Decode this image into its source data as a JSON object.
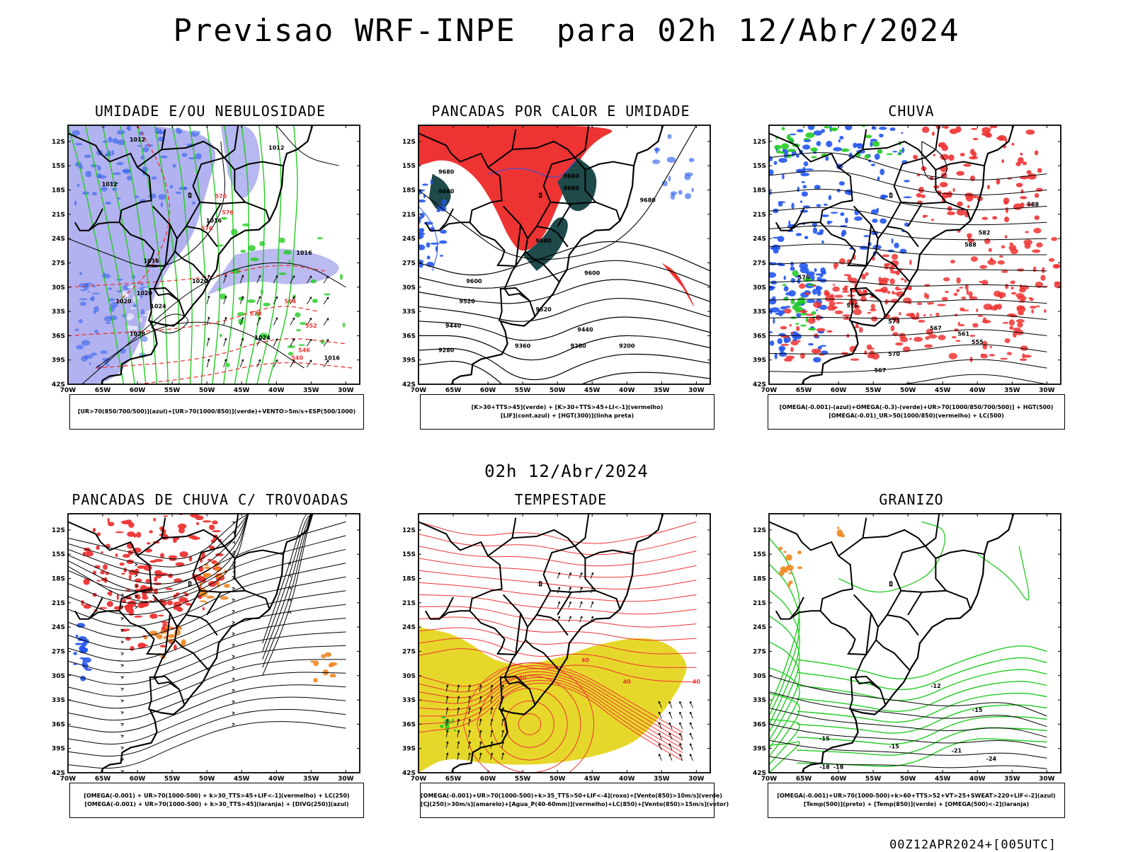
{
  "title": "Previsao WRF-INPE  para 02h 12/Abr/2024",
  "mid_date": "02h 12/Abr/2024",
  "footer": "00Z12APR2024+[005UTC]",
  "lat_labels": [
    "12S",
    "15S",
    "18S",
    "21S",
    "24S",
    "27S",
    "30S",
    "33S",
    "36S",
    "39S",
    "42S"
  ],
  "lon_labels": [
    "70W",
    "65W",
    "60W",
    "55W",
    "50W",
    "45W",
    "40W",
    "35W",
    "30W"
  ],
  "colors": {
    "red": "#ee3333",
    "blue": "#2255ee",
    "green": "#22cc22",
    "lavender": "#aaaaee",
    "dark_teal": "#1e4a4a",
    "orange": "#ee8822",
    "yellow": "#e6d82a",
    "black": "#000000"
  },
  "panels": [
    {
      "id": "p1",
      "title": "UMIDADE E/OU NEBULOSIDADE",
      "legend": [
        "[UR>70(850/700/500)](azul)+[UR>70(1000/850)](verde)+VENTO>5m/s+ESP(500/1000)"
      ],
      "contour_labels": [
        "1012",
        "1012",
        "1012",
        "1016",
        "1016",
        "1016",
        "1020",
        "1020",
        "1020",
        "1024",
        "1024",
        "1028",
        "1016",
        "576",
        "576",
        "576",
        "570",
        "564",
        "552",
        "546",
        "540"
      ]
    },
    {
      "id": "p2",
      "title": "PANCADAS POR CALOR E UMIDADE",
      "legend": [
        "[K>30+TTS>45](verde) + [K>30+TTS>45+LI<-1](vermelho)",
        "[LIF](cont.azul) + [HGT(300)](linha preta)"
      ],
      "contour_labels": [
        "9680",
        "9680",
        "9680",
        "9680",
        "9680",
        "9600",
        "9600",
        "9520",
        "9520",
        "9440",
        "9440",
        "9360",
        "9280",
        "9280",
        "9200",
        "9680"
      ]
    },
    {
      "id": "p3",
      "title": "CHUVA",
      "legend": [
        "[OMEGA(-0.001)-(azul)+OMEGA(-0.3)-(verde)+UR>70(1000/850/700/500)] + HGT(500)",
        "[OMEGA(-0.01)_UR>50(1000/850)(vermelho) + LC(500)"
      ],
      "contour_labels": [
        "588",
        "582",
        "588",
        "576",
        "576",
        "573",
        "567",
        "561",
        "555",
        "570",
        "567"
      ]
    },
    {
      "id": "p4",
      "title": "PANCADAS DE CHUVA C/ TROVOADAS",
      "legend": [
        "[OMEGA(-0.001) + UR>70(1000-500) + k>30_TTS>45+LIF<-1](vermelho) + LC(250)",
        "[OMEGA(-0.001) + UR>70(1000-500) + k>30_TTS>45](laranja) + [DIVG(250)](azul)"
      ],
      "contour_labels": []
    },
    {
      "id": "p5",
      "title": "TEMPESTADE",
      "legend": [
        "[OMEGA(-0.001)+UR>70(1000-500)+k>35_TTS>50+LIF<-4](roxo)+[Vento(850)>10m/s](verde)",
        "[CJ(250)>30m/s](amarelo)+[Agua_P(40-60mm)](vermelho)+LC(850)+[Vento(850)>15m/s](vetor)"
      ],
      "contour_labels": [
        "40",
        "40",
        "40",
        "40"
      ]
    },
    {
      "id": "p6",
      "title": "GRANIZO",
      "legend": [
        "[OMEGA(-0.001)+UR>70(1000-500)+k>60+TTS>52+VT>25+SWEAT>220+LIF<-2](azul)",
        "[Temp(500)](preto) + [Temp(850)](verde) + [OMEGA(500)<-2](laranja)"
      ],
      "contour_labels": [
        "-12",
        "-15",
        "-15",
        "-18",
        "-21",
        "-24",
        "-15",
        "-18"
      ]
    }
  ]
}
